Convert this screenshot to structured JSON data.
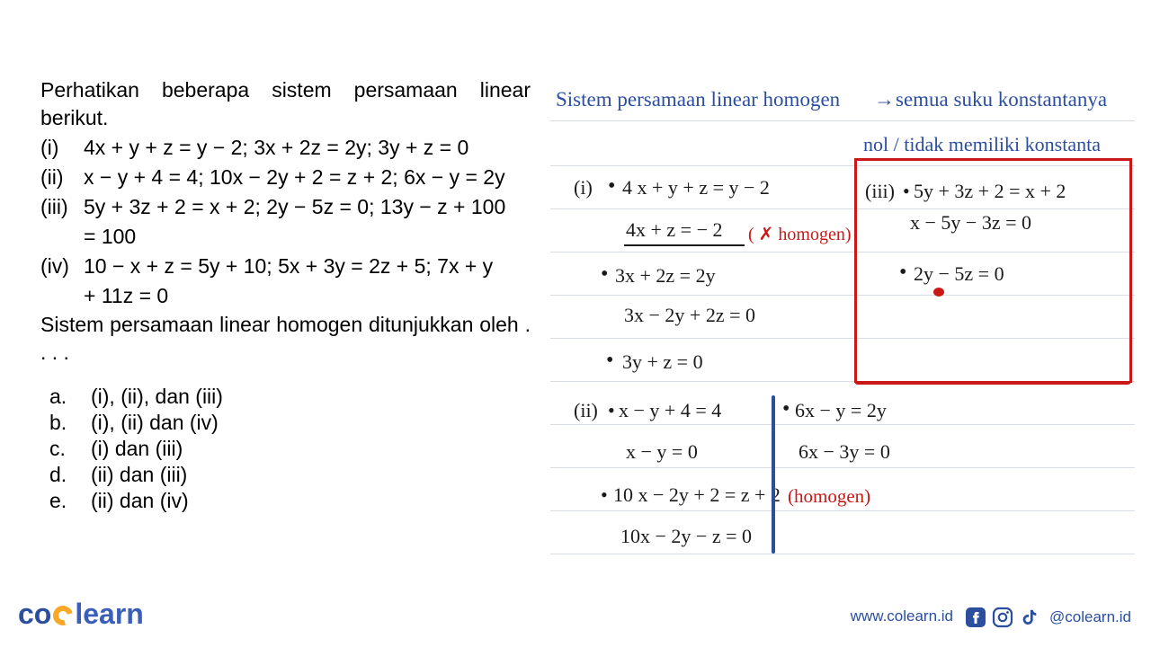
{
  "question": {
    "intro": "Perhatikan beberapa sistem persamaan linear berikut.",
    "items": [
      {
        "roman": "(i)",
        "text": "4x + y + z = y − 2; 3x + 2z = 2y; 3y + z = 0"
      },
      {
        "roman": "(ii)",
        "text": "x − y + 4 = 4;  10x − 2y + 2 = z + 2; 6x − y = 2y"
      },
      {
        "roman": "(iii)",
        "text": "5y + 3z + 2 = x + 2; 2y − 5z = 0; 13y − z + 100"
      },
      {
        "roman": "",
        "text": "= 100"
      },
      {
        "roman": "(iv)",
        "text": "10 −  x + z = 5y + 10; 5x + 3y = 2z + 5; 7x + y"
      },
      {
        "roman": "",
        "text": "+ 11z = 0"
      }
    ],
    "prompt": "Sistem persamaan linear homogen ditunjukkan oleh . . . .",
    "options": [
      {
        "letter": "a.",
        "text": "(i), (ii), dan (iii)"
      },
      {
        "letter": "b.",
        "text": "(i), (ii) dan (iv)"
      },
      {
        "letter": "c.",
        "text": "(i) dan (iii)"
      },
      {
        "letter": "d.",
        "text": "(ii) dan (iii)"
      },
      {
        "letter": "e.",
        "text": "(ii) dan (iv)"
      }
    ]
  },
  "notes": {
    "title_part1": "Sistem persamaan linear homogen",
    "title_arrow": "→",
    "title_part2": "semua suku konstantanya",
    "title_part3": "nol / tidak memiliki konstanta",
    "i_label": "(i)",
    "i_eq1": "4 x + y + z = y − 2",
    "i_eq1_res": "4x + z = − 2",
    "i_note": "( ✗ homogen)",
    "i_eq2": "3x + 2z  = 2y",
    "i_eq2_res": "3x − 2y + 2z = 0",
    "i_eq3": "3y + z = 0",
    "ii_label": "(ii)",
    "ii_eq1": "x − y  + 4 = 4",
    "ii_eq1_res": "x − y = 0",
    "ii_eq2": "10 x − 2y + 2 = z + 2",
    "ii_eq2_res": "10x − 2y − z = 0",
    "ii_eq3": "6x − y = 2y",
    "ii_eq3_res": "6x − 3y = 0",
    "ii_note": "(homogen)",
    "iii_label": "(iii)",
    "iii_eq1": "5y + 3z + 2 = x + 2",
    "iii_eq1_res": "x − 5y − 3z = 0",
    "iii_eq2": "2y − 5z = 0",
    "colors": {
      "blue": "#2b4e9e",
      "red": "#c91818",
      "black": "#1a1a1a",
      "lineGray": "#d8dde3"
    },
    "line_positions": [
      134,
      184,
      232,
      280,
      328,
      376,
      424,
      472,
      520,
      568,
      616
    ],
    "font_size": 22
  },
  "footer": {
    "website": "www.colearn.id",
    "handle": "@colearn.id",
    "logo_text1": "co",
    "logo_text2": "learn"
  }
}
